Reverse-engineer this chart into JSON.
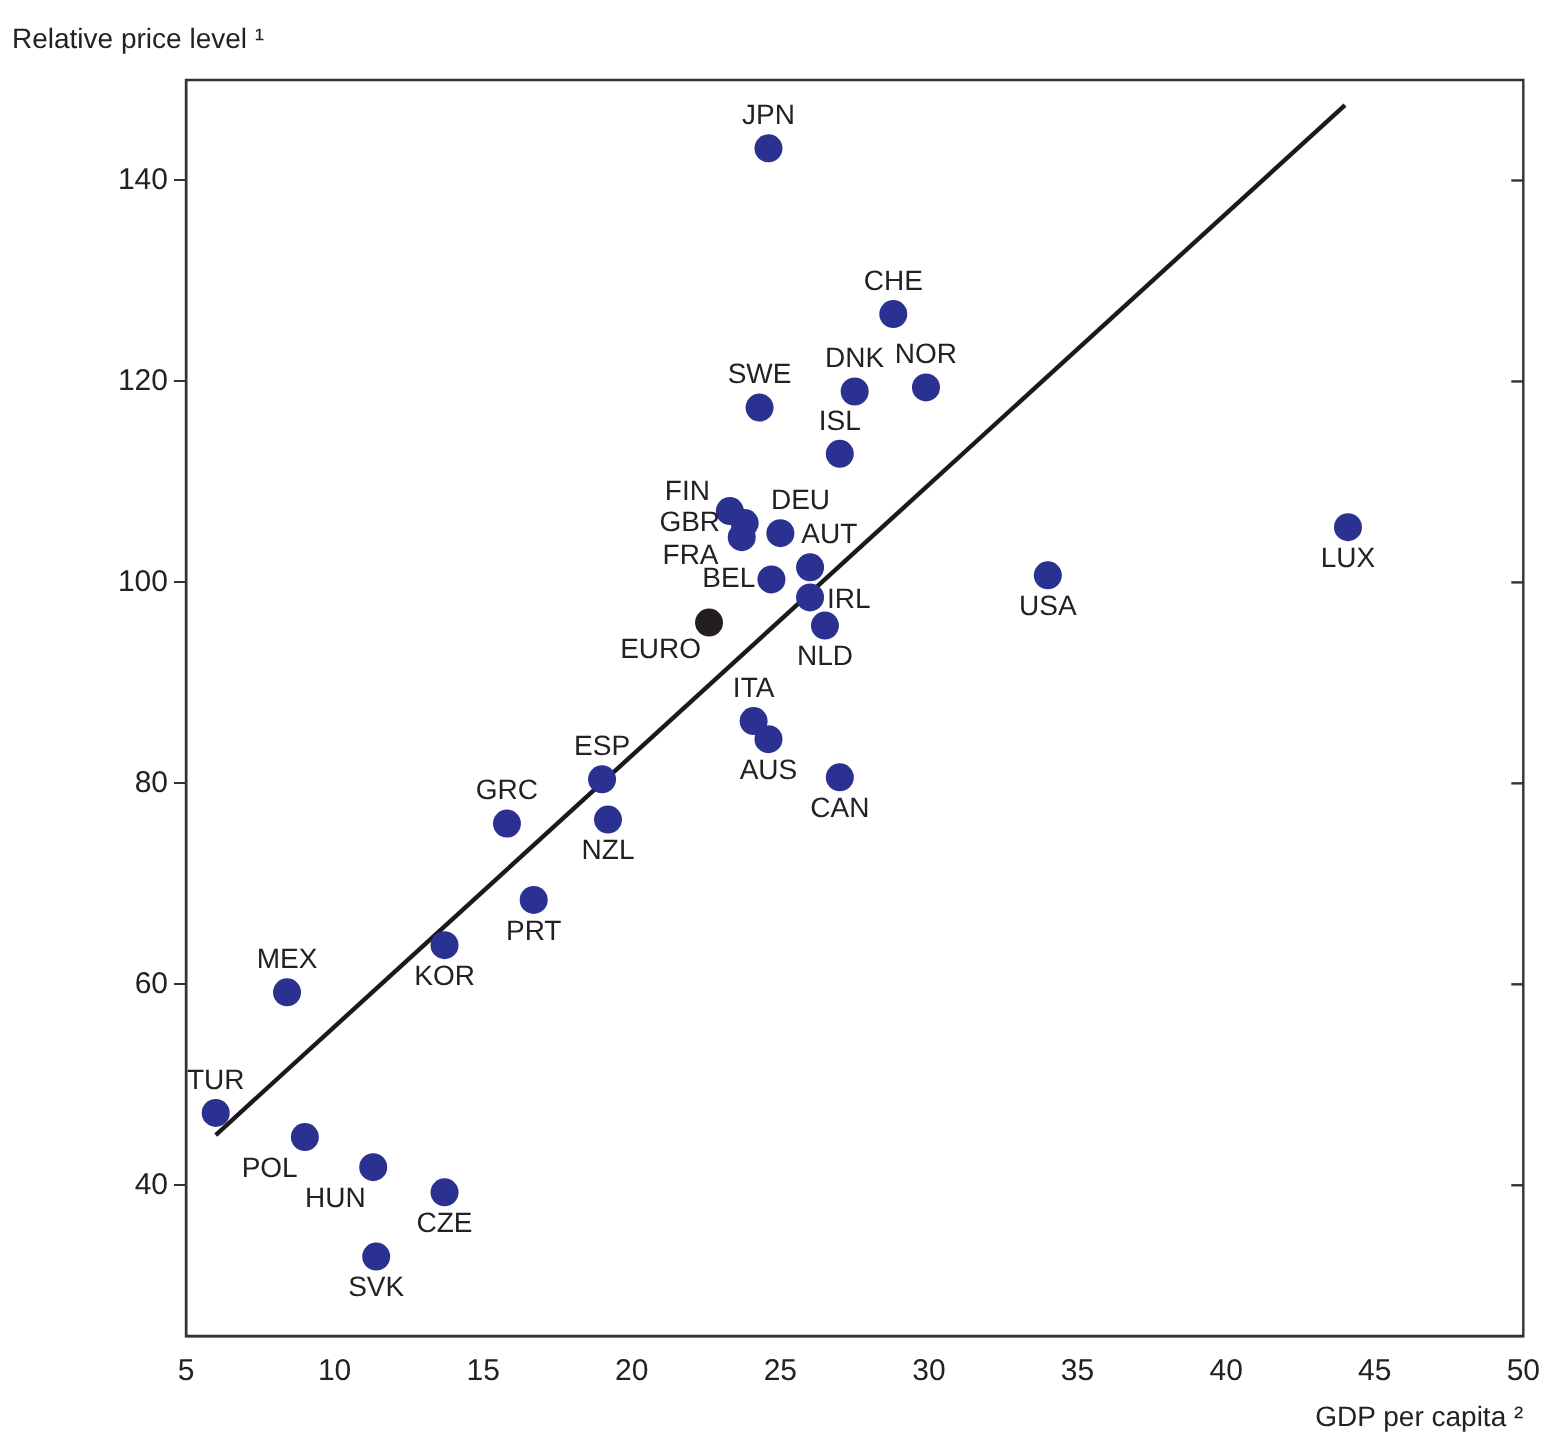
{
  "chart_data": {
    "type": "scatter",
    "xlabel": "GDP per capita ²",
    "ylabel": "Relative price level ¹",
    "xlim": [
      5,
      50
    ],
    "xticks": [
      5,
      10,
      15,
      20,
      25,
      30,
      35,
      40,
      45,
      50
    ],
    "ylim": [
      25,
      150
    ],
    "yticks": [
      40,
      60,
      80,
      100,
      120,
      140
    ],
    "grid": false,
    "legend": false,
    "marker": "circle",
    "series": [
      {
        "color": "#2b3191",
        "x": [
          24.6,
          28.8,
          27.5,
          29.9,
          24.3,
          27.0,
          23.3,
          23.8,
          23.7,
          25.0,
          26.0,
          24.7,
          26.0,
          26.5,
          34.0,
          44.1,
          24.1,
          24.6,
          27.0,
          19.0,
          15.8,
          19.2,
          16.7,
          13.7,
          8.4,
          6.0,
          9.0,
          11.3,
          13.7,
          11.4
        ],
        "values": [
          143.2,
          126.7,
          119.0,
          119.4,
          117.4,
          112.8,
          107.1,
          105.9,
          104.5,
          104.9,
          101.5,
          100.3,
          98.5,
          95.7,
          100.7,
          105.5,
          86.2,
          84.4,
          80.6,
          80.4,
          76.0,
          76.4,
          68.4,
          63.9,
          59.2,
          47.2,
          44.8,
          41.8,
          39.3,
          32.9
        ],
        "value_labels": [
          "JPN",
          "CHE",
          "DNK",
          "NOR",
          "SWE",
          "ISL",
          "FIN",
          "GBR",
          "FRA",
          "DEU",
          "AUT",
          "BEL",
          "IRL",
          "NLD",
          "USA",
          "LUX",
          "ITA",
          "AUS",
          "CAN",
          "ESP",
          "GRC",
          "NZL",
          "PRT",
          "KOR",
          "MEX",
          "TUR",
          "POL",
          "HUN",
          "CZE",
          "SVK"
        ]
      },
      {
        "name": "EURO",
        "color": "#231f20",
        "x": [
          22.6
        ],
        "values": [
          96.0
        ]
      },
      {
        "type": "line",
        "color": "#1a1a1a",
        "marker": "none",
        "line_style": "solid",
        "x": [
          6.0,
          44.0
        ],
        "values": [
          45.0,
          147.5
        ]
      }
    ]
  }
}
